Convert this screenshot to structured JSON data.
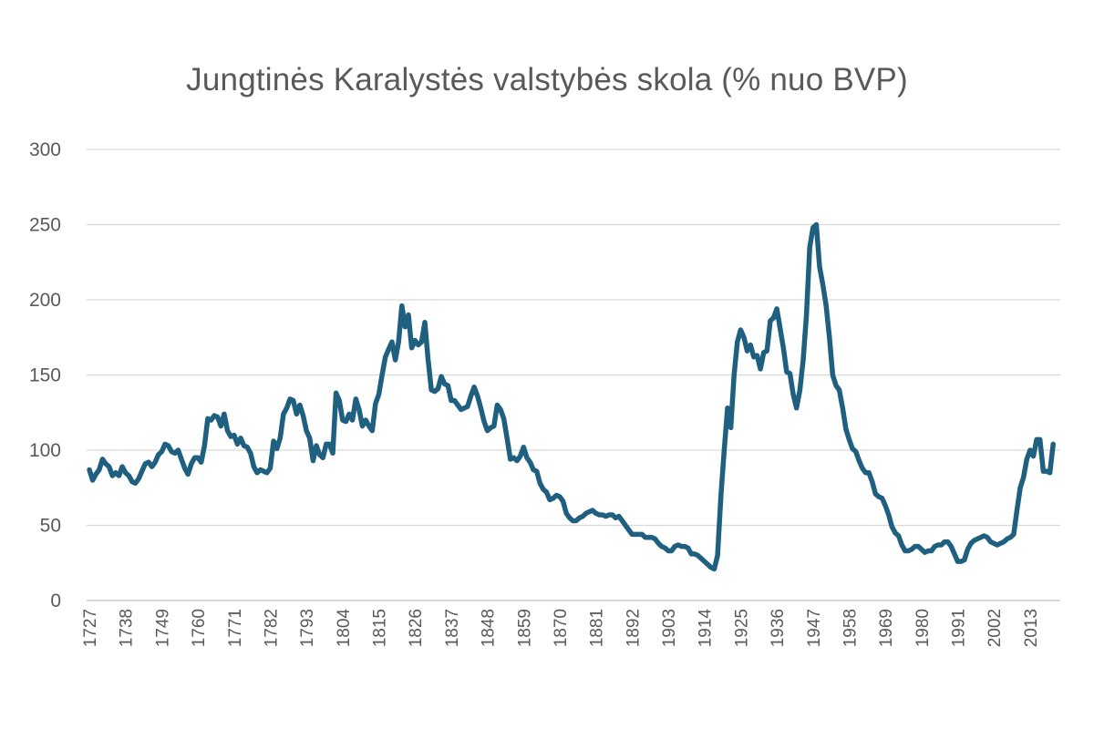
{
  "chart_data": {
    "type": "line",
    "title": "Jungtinės Karalystės valstybės skola (% nuo BVP)",
    "xlabel": "",
    "ylabel": "",
    "ylim": [
      0,
      300
    ],
    "yticks": [
      0,
      50,
      100,
      150,
      200,
      250,
      300
    ],
    "xlim": [
      1727,
      2023
    ],
    "xticks": [
      1727,
      1738,
      1749,
      1760,
      1771,
      1782,
      1793,
      1804,
      1815,
      1826,
      1837,
      1848,
      1859,
      1870,
      1881,
      1892,
      1903,
      1914,
      1925,
      1936,
      1947,
      1958,
      1969,
      1980,
      1991,
      2002,
      2013
    ],
    "grid": true,
    "legend": "none",
    "series": [
      {
        "color": "#1f5f80",
        "points": [
          [
            1727,
            87
          ],
          [
            1728,
            80
          ],
          [
            1729,
            84
          ],
          [
            1730,
            87
          ],
          [
            1731,
            94
          ],
          [
            1732,
            91
          ],
          [
            1733,
            89
          ],
          [
            1734,
            83
          ],
          [
            1735,
            85
          ],
          [
            1736,
            83
          ],
          [
            1737,
            89
          ],
          [
            1738,
            85
          ],
          [
            1739,
            83
          ],
          [
            1740,
            79
          ],
          [
            1741,
            78
          ],
          [
            1742,
            81
          ],
          [
            1743,
            86
          ],
          [
            1744,
            91
          ],
          [
            1745,
            92
          ],
          [
            1746,
            89
          ],
          [
            1747,
            92
          ],
          [
            1748,
            97
          ],
          [
            1749,
            99
          ],
          [
            1750,
            104
          ],
          [
            1751,
            103
          ],
          [
            1752,
            99
          ],
          [
            1753,
            98
          ],
          [
            1754,
            100
          ],
          [
            1755,
            94
          ],
          [
            1756,
            88
          ],
          [
            1757,
            84
          ],
          [
            1758,
            91
          ],
          [
            1759,
            95
          ],
          [
            1760,
            95
          ],
          [
            1761,
            92
          ],
          [
            1762,
            103
          ],
          [
            1763,
            121
          ],
          [
            1764,
            120
          ],
          [
            1765,
            123
          ],
          [
            1766,
            122
          ],
          [
            1767,
            116
          ],
          [
            1768,
            124
          ],
          [
            1769,
            113
          ],
          [
            1770,
            109
          ],
          [
            1771,
            110
          ],
          [
            1772,
            104
          ],
          [
            1773,
            108
          ],
          [
            1774,
            103
          ],
          [
            1775,
            102
          ],
          [
            1776,
            98
          ],
          [
            1777,
            89
          ],
          [
            1778,
            85
          ],
          [
            1779,
            87
          ],
          [
            1780,
            86
          ],
          [
            1781,
            85
          ],
          [
            1782,
            88
          ],
          [
            1783,
            106
          ],
          [
            1784,
            101
          ],
          [
            1785,
            108
          ],
          [
            1786,
            124
          ],
          [
            1787,
            128
          ],
          [
            1788,
            134
          ],
          [
            1789,
            133
          ],
          [
            1790,
            124
          ],
          [
            1791,
            130
          ],
          [
            1792,
            123
          ],
          [
            1793,
            113
          ],
          [
            1794,
            108
          ],
          [
            1795,
            93
          ],
          [
            1796,
            103
          ],
          [
            1797,
            97
          ],
          [
            1798,
            95
          ],
          [
            1799,
            104
          ],
          [
            1800,
            104
          ],
          [
            1801,
            98
          ],
          [
            1802,
            138
          ],
          [
            1803,
            133
          ],
          [
            1804,
            120
          ],
          [
            1805,
            119
          ],
          [
            1806,
            124
          ],
          [
            1807,
            120
          ],
          [
            1808,
            134
          ],
          [
            1809,
            127
          ],
          [
            1810,
            116
          ],
          [
            1811,
            120
          ],
          [
            1812,
            116
          ],
          [
            1813,
            113
          ],
          [
            1814,
            131
          ],
          [
            1815,
            137
          ],
          [
            1816,
            150
          ],
          [
            1817,
            162
          ],
          [
            1818,
            167
          ],
          [
            1819,
            172
          ],
          [
            1820,
            160
          ],
          [
            1821,
            172
          ],
          [
            1822,
            196
          ],
          [
            1823,
            182
          ],
          [
            1824,
            190
          ],
          [
            1825,
            168
          ],
          [
            1826,
            173
          ],
          [
            1827,
            170
          ],
          [
            1828,
            172
          ],
          [
            1829,
            185
          ],
          [
            1830,
            160
          ],
          [
            1831,
            140
          ],
          [
            1832,
            139
          ],
          [
            1833,
            141
          ],
          [
            1834,
            149
          ],
          [
            1835,
            144
          ],
          [
            1836,
            143
          ],
          [
            1837,
            133
          ],
          [
            1838,
            133
          ],
          [
            1839,
            130
          ],
          [
            1840,
            127
          ],
          [
            1841,
            128
          ],
          [
            1842,
            129
          ],
          [
            1843,
            136
          ],
          [
            1844,
            142
          ],
          [
            1845,
            136
          ],
          [
            1846,
            128
          ],
          [
            1847,
            119
          ],
          [
            1848,
            113
          ],
          [
            1849,
            115
          ],
          [
            1850,
            116
          ],
          [
            1851,
            130
          ],
          [
            1852,
            127
          ],
          [
            1853,
            121
          ],
          [
            1854,
            108
          ],
          [
            1855,
            94
          ],
          [
            1856,
            95
          ],
          [
            1857,
            93
          ],
          [
            1858,
            96
          ],
          [
            1859,
            102
          ],
          [
            1860,
            95
          ],
          [
            1861,
            92
          ],
          [
            1862,
            87
          ],
          [
            1863,
            86
          ],
          [
            1864,
            78
          ],
          [
            1865,
            74
          ],
          [
            1866,
            72
          ],
          [
            1867,
            67
          ],
          [
            1868,
            68
          ],
          [
            1869,
            70
          ],
          [
            1870,
            69
          ],
          [
            1871,
            66
          ],
          [
            1872,
            58
          ],
          [
            1873,
            55
          ],
          [
            1874,
            53
          ],
          [
            1875,
            53
          ],
          [
            1876,
            55
          ],
          [
            1877,
            56
          ],
          [
            1878,
            58
          ],
          [
            1879,
            59
          ],
          [
            1880,
            60
          ],
          [
            1881,
            58
          ],
          [
            1882,
            57
          ],
          [
            1883,
            57
          ],
          [
            1884,
            56
          ],
          [
            1885,
            57
          ],
          [
            1886,
            57
          ],
          [
            1887,
            55
          ],
          [
            1888,
            56
          ],
          [
            1889,
            53
          ],
          [
            1890,
            50
          ],
          [
            1891,
            47
          ],
          [
            1892,
            44
          ],
          [
            1893,
            44
          ],
          [
            1894,
            44
          ],
          [
            1895,
            44
          ],
          [
            1896,
            42
          ],
          [
            1897,
            42
          ],
          [
            1898,
            42
          ],
          [
            1899,
            41
          ],
          [
            1900,
            38
          ],
          [
            1901,
            36
          ],
          [
            1902,
            35
          ],
          [
            1903,
            33
          ],
          [
            1904,
            33
          ],
          [
            1905,
            36
          ],
          [
            1906,
            37
          ],
          [
            1907,
            36
          ],
          [
            1908,
            36
          ],
          [
            1909,
            35
          ],
          [
            1910,
            31
          ],
          [
            1911,
            31
          ],
          [
            1912,
            30
          ],
          [
            1913,
            28
          ],
          [
            1914,
            26
          ],
          [
            1915,
            24
          ],
          [
            1916,
            22
          ],
          [
            1917,
            21
          ],
          [
            1918,
            30
          ],
          [
            1919,
            70
          ],
          [
            1920,
            100
          ],
          [
            1921,
            128
          ],
          [
            1922,
            115
          ],
          [
            1923,
            150
          ],
          [
            1924,
            172
          ],
          [
            1925,
            180
          ],
          [
            1926,
            175
          ],
          [
            1927,
            166
          ],
          [
            1928,
            170
          ],
          [
            1929,
            162
          ],
          [
            1930,
            163
          ],
          [
            1931,
            154
          ],
          [
            1932,
            165
          ],
          [
            1933,
            166
          ],
          [
            1934,
            186
          ],
          [
            1935,
            188
          ],
          [
            1936,
            194
          ],
          [
            1937,
            181
          ],
          [
            1938,
            168
          ],
          [
            1939,
            152
          ],
          [
            1940,
            151
          ],
          [
            1941,
            137
          ],
          [
            1942,
            128
          ],
          [
            1943,
            140
          ],
          [
            1944,
            160
          ],
          [
            1945,
            190
          ],
          [
            1946,
            235
          ],
          [
            1947,
            248
          ],
          [
            1948,
            250
          ],
          [
            1949,
            222
          ],
          [
            1950,
            210
          ],
          [
            1951,
            196
          ],
          [
            1952,
            175
          ],
          [
            1953,
            150
          ],
          [
            1954,
            143
          ],
          [
            1955,
            140
          ],
          [
            1956,
            128
          ],
          [
            1957,
            114
          ],
          [
            1958,
            107
          ],
          [
            1959,
            101
          ],
          [
            1960,
            99
          ],
          [
            1961,
            93
          ],
          [
            1962,
            88
          ],
          [
            1963,
            85
          ],
          [
            1964,
            85
          ],
          [
            1965,
            79
          ],
          [
            1966,
            71
          ],
          [
            1967,
            69
          ],
          [
            1968,
            68
          ],
          [
            1969,
            63
          ],
          [
            1970,
            57
          ],
          [
            1971,
            49
          ],
          [
            1972,
            45
          ],
          [
            1973,
            43
          ],
          [
            1974,
            37
          ],
          [
            1975,
            33
          ],
          [
            1976,
            33
          ],
          [
            1977,
            34
          ],
          [
            1978,
            36
          ],
          [
            1979,
            36
          ],
          [
            1980,
            34
          ],
          [
            1981,
            32
          ],
          [
            1982,
            33
          ],
          [
            1983,
            33
          ],
          [
            1984,
            36
          ],
          [
            1985,
            37
          ],
          [
            1986,
            37
          ],
          [
            1987,
            39
          ],
          [
            1988,
            39
          ],
          [
            1989,
            36
          ],
          [
            1990,
            31
          ],
          [
            1991,
            26
          ],
          [
            1992,
            26
          ],
          [
            1993,
            27
          ],
          [
            1994,
            34
          ],
          [
            1995,
            38
          ],
          [
            1996,
            40
          ],
          [
            1997,
            41
          ],
          [
            1998,
            42
          ],
          [
            1999,
            43
          ],
          [
            2000,
            42
          ],
          [
            2001,
            39
          ],
          [
            2002,
            38
          ],
          [
            2003,
            37
          ],
          [
            2004,
            38
          ],
          [
            2005,
            39
          ],
          [
            2006,
            41
          ],
          [
            2007,
            42
          ],
          [
            2008,
            44
          ],
          [
            2009,
            60
          ],
          [
            2010,
            75
          ],
          [
            2011,
            82
          ],
          [
            2012,
            94
          ],
          [
            2013,
            100
          ],
          [
            2014,
            96
          ],
          [
            2015,
            107
          ],
          [
            2016,
            107
          ],
          [
            2017,
            86
          ],
          [
            2018,
            86
          ],
          [
            2019,
            85
          ],
          [
            2020,
            104
          ]
        ]
      }
    ]
  }
}
